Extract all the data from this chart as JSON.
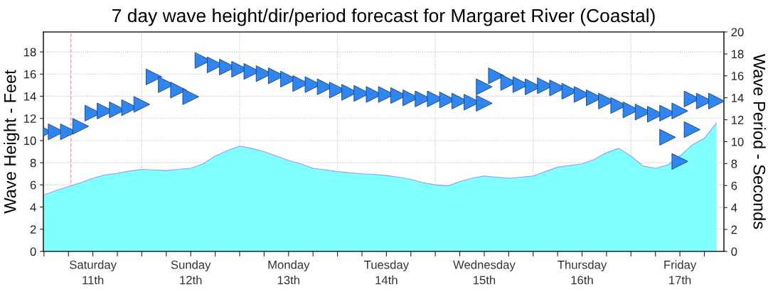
{
  "chart_data": {
    "type": "area",
    "title": "7 day wave height/dir/period forecast for Margaret River (Coastal)",
    "ylabel": "Wave Height - Feet",
    "y2label": "Wave Period - Seconds",
    "categories": [
      null,
      null,
      null,
      null,
      "Saturday\n11th",
      null,
      null,
      null,
      null,
      null,
      null,
      null,
      "Sunday\n12th",
      null,
      null,
      null,
      null,
      null,
      null,
      null,
      "Monday\n13th",
      null,
      null,
      null,
      null,
      null,
      null,
      null,
      "Tuesday\n14th",
      null,
      null,
      null,
      null,
      null,
      null,
      null,
      "Wednesday\n15th",
      null,
      null,
      null,
      null,
      null,
      null,
      null,
      "Thursday\n16th",
      null,
      null,
      null,
      null,
      null,
      null,
      null,
      "Friday\n17th",
      null,
      null,
      null
    ],
    "ylim": [
      0,
      19.8
    ],
    "y2lim": [
      0,
      20
    ],
    "yticks": [
      0,
      2,
      4,
      6,
      8,
      10,
      12,
      14,
      16,
      18
    ],
    "y2ticks": [
      0,
      2,
      4,
      6,
      8,
      10,
      12,
      14,
      16,
      18,
      20
    ],
    "grid": true,
    "series": [
      {
        "color": "#80ffff",
        "values": [
          5.1,
          5.5,
          5.85,
          6.2,
          6.6,
          6.9,
          7.05,
          7.25,
          7.4,
          7.35,
          7.3,
          7.4,
          7.5,
          7.9,
          8.6,
          9.1,
          9.5,
          9.3,
          9.0,
          8.6,
          8.2,
          7.9,
          7.5,
          7.35,
          7.2,
          7.1,
          7.0,
          6.95,
          6.85,
          6.7,
          6.5,
          6.2,
          6.0,
          5.9,
          6.3,
          6.6,
          6.8,
          6.7,
          6.6,
          6.7,
          6.8,
          7.2,
          7.6,
          7.75,
          7.9,
          8.3,
          8.9,
          9.3,
          8.6,
          7.7,
          7.5,
          7.8,
          8.6,
          9.6,
          10.2,
          11.6
        ]
      },
      {
        "type": "scatter",
        "axis": "y2",
        "marker": "triangle",
        "color": "#2f86f0",
        "values": [
          10.9,
          10.9,
          10.9,
          11.4,
          12.6,
          12.8,
          12.9,
          13.1,
          13.4,
          null,
          null,
          null,
          null,
          null,
          null,
          null,
          null,
          null,
          null,
          null,
          null,
          null,
          null,
          null,
          null,
          null,
          null,
          null,
          null,
          null,
          null,
          null,
          null,
          null,
          null,
          null,
          null,
          null,
          null,
          null,
          null,
          null,
          null,
          null,
          null,
          null,
          null,
          null,
          null,
          null,
          null,
          null,
          null,
          null,
          null,
          null
        ]
      },
      {
        "type": "scatter",
        "axis": "y2",
        "marker": "triangle",
        "color": "#2f86f0",
        "values": [
          null,
          null,
          null,
          null,
          null,
          null,
          null,
          null,
          null,
          15.9,
          15.2,
          14.7,
          14.1,
          null,
          null,
          null,
          null,
          null,
          null,
          null,
          null,
          null,
          null,
          null,
          null,
          null,
          null,
          null,
          null,
          null,
          null,
          null,
          null,
          null,
          null,
          null,
          null,
          null,
          null,
          null,
          null,
          null,
          null,
          null,
          null,
          null,
          null,
          null,
          null,
          null,
          null,
          null,
          null,
          null,
          null,
          null
        ]
      },
      {
        "type": "scatter",
        "axis": "y2",
        "marker": "triangle",
        "color": "#2f86f0",
        "values": [
          null,
          null,
          null,
          null,
          null,
          null,
          null,
          null,
          null,
          null,
          null,
          null,
          null,
          17.4,
          17.0,
          16.8,
          16.6,
          16.4,
          16.2,
          16.0,
          15.7,
          15.3,
          15.2,
          15.0,
          14.7,
          14.5,
          14.4,
          14.3,
          14.3,
          14.2,
          14.0,
          13.9,
          13.9,
          13.8,
          13.7,
          13.6,
          13.5,
          null,
          null,
          null,
          null,
          null,
          null,
          null,
          null,
          null,
          null,
          null,
          null,
          null,
          null,
          null,
          null,
          null,
          null,
          null
        ]
      },
      {
        "type": "scatter",
        "axis": "y2",
        "marker": "triangle",
        "color": "#2f86f0",
        "values": [
          null,
          null,
          null,
          null,
          null,
          null,
          null,
          null,
          null,
          null,
          null,
          null,
          null,
          null,
          null,
          null,
          null,
          null,
          null,
          null,
          null,
          null,
          null,
          null,
          null,
          null,
          null,
          null,
          null,
          null,
          null,
          null,
          null,
          null,
          null,
          null,
          15.0,
          16.0,
          15.4,
          15.2,
          15.0,
          15.1,
          14.9,
          14.6,
          14.3,
          14.0,
          13.7,
          13.3,
          12.9,
          12.7,
          12.5,
          12.6,
          12.8,
          13.9,
          13.7,
          13.7
        ]
      },
      {
        "type": "scatter",
        "axis": "y2",
        "marker": "triangle",
        "color": "#2f86f0",
        "values": [
          null,
          null,
          null,
          null,
          null,
          null,
          null,
          null,
          null,
          null,
          null,
          null,
          null,
          null,
          null,
          null,
          null,
          null,
          null,
          null,
          null,
          null,
          null,
          null,
          null,
          null,
          null,
          null,
          null,
          null,
          null,
          null,
          null,
          null,
          null,
          null,
          null,
          null,
          null,
          null,
          null,
          null,
          null,
          null,
          null,
          null,
          null,
          null,
          null,
          null,
          null,
          10.4,
          8.2,
          11.1,
          null,
          null
        ]
      }
    ]
  }
}
